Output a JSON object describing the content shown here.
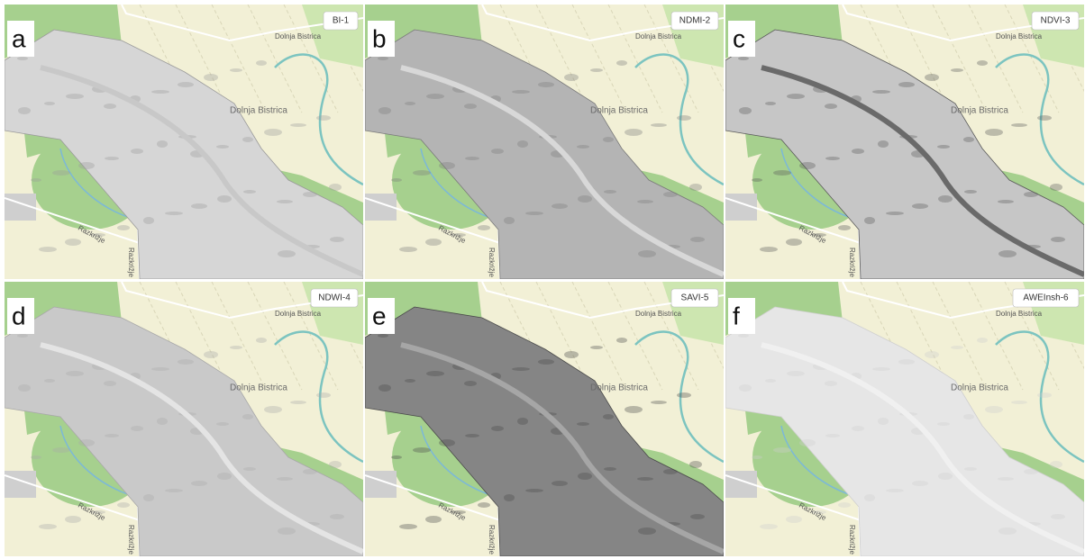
{
  "panels": [
    {
      "letter": "a",
      "index": "BI-1",
      "town": "Dolnja Bistrica",
      "road": "Razkrižje",
      "road2": "Razkrižje",
      "village": "Dolnja Bistrica"
    },
    {
      "letter": "b",
      "index": "NDMI-2",
      "town": "Dolnja Bistrica",
      "road": "Razkrižje",
      "road2": "Razkrižje",
      "village": "Dolnja Bistrica"
    },
    {
      "letter": "c",
      "index": "NDVI-3",
      "town": "Dolnja Bistrica",
      "road": "Razkrižje",
      "road2": "Razkrižje",
      "village": "Dolnja Bistrica"
    },
    {
      "letter": "d",
      "index": "NDWI-4",
      "town": "Dolnja Bistrica",
      "road": "Razkrižje",
      "road2": "Razkrižje",
      "village": "Dolnja Bistrica"
    },
    {
      "letter": "e",
      "index": "SAVI-5",
      "town": "Dolnja Bistrica",
      "road": "Razkrižje",
      "road2": "Razkrižje",
      "village": "Dolnja Bistrica"
    },
    {
      "letter": "f",
      "index": "AWEInsh-6",
      "town": "Dolnja Bistrica",
      "road": "Razkrižje",
      "road2": "Razkrižje",
      "village": "Dolnja Bistrica"
    }
  ]
}
